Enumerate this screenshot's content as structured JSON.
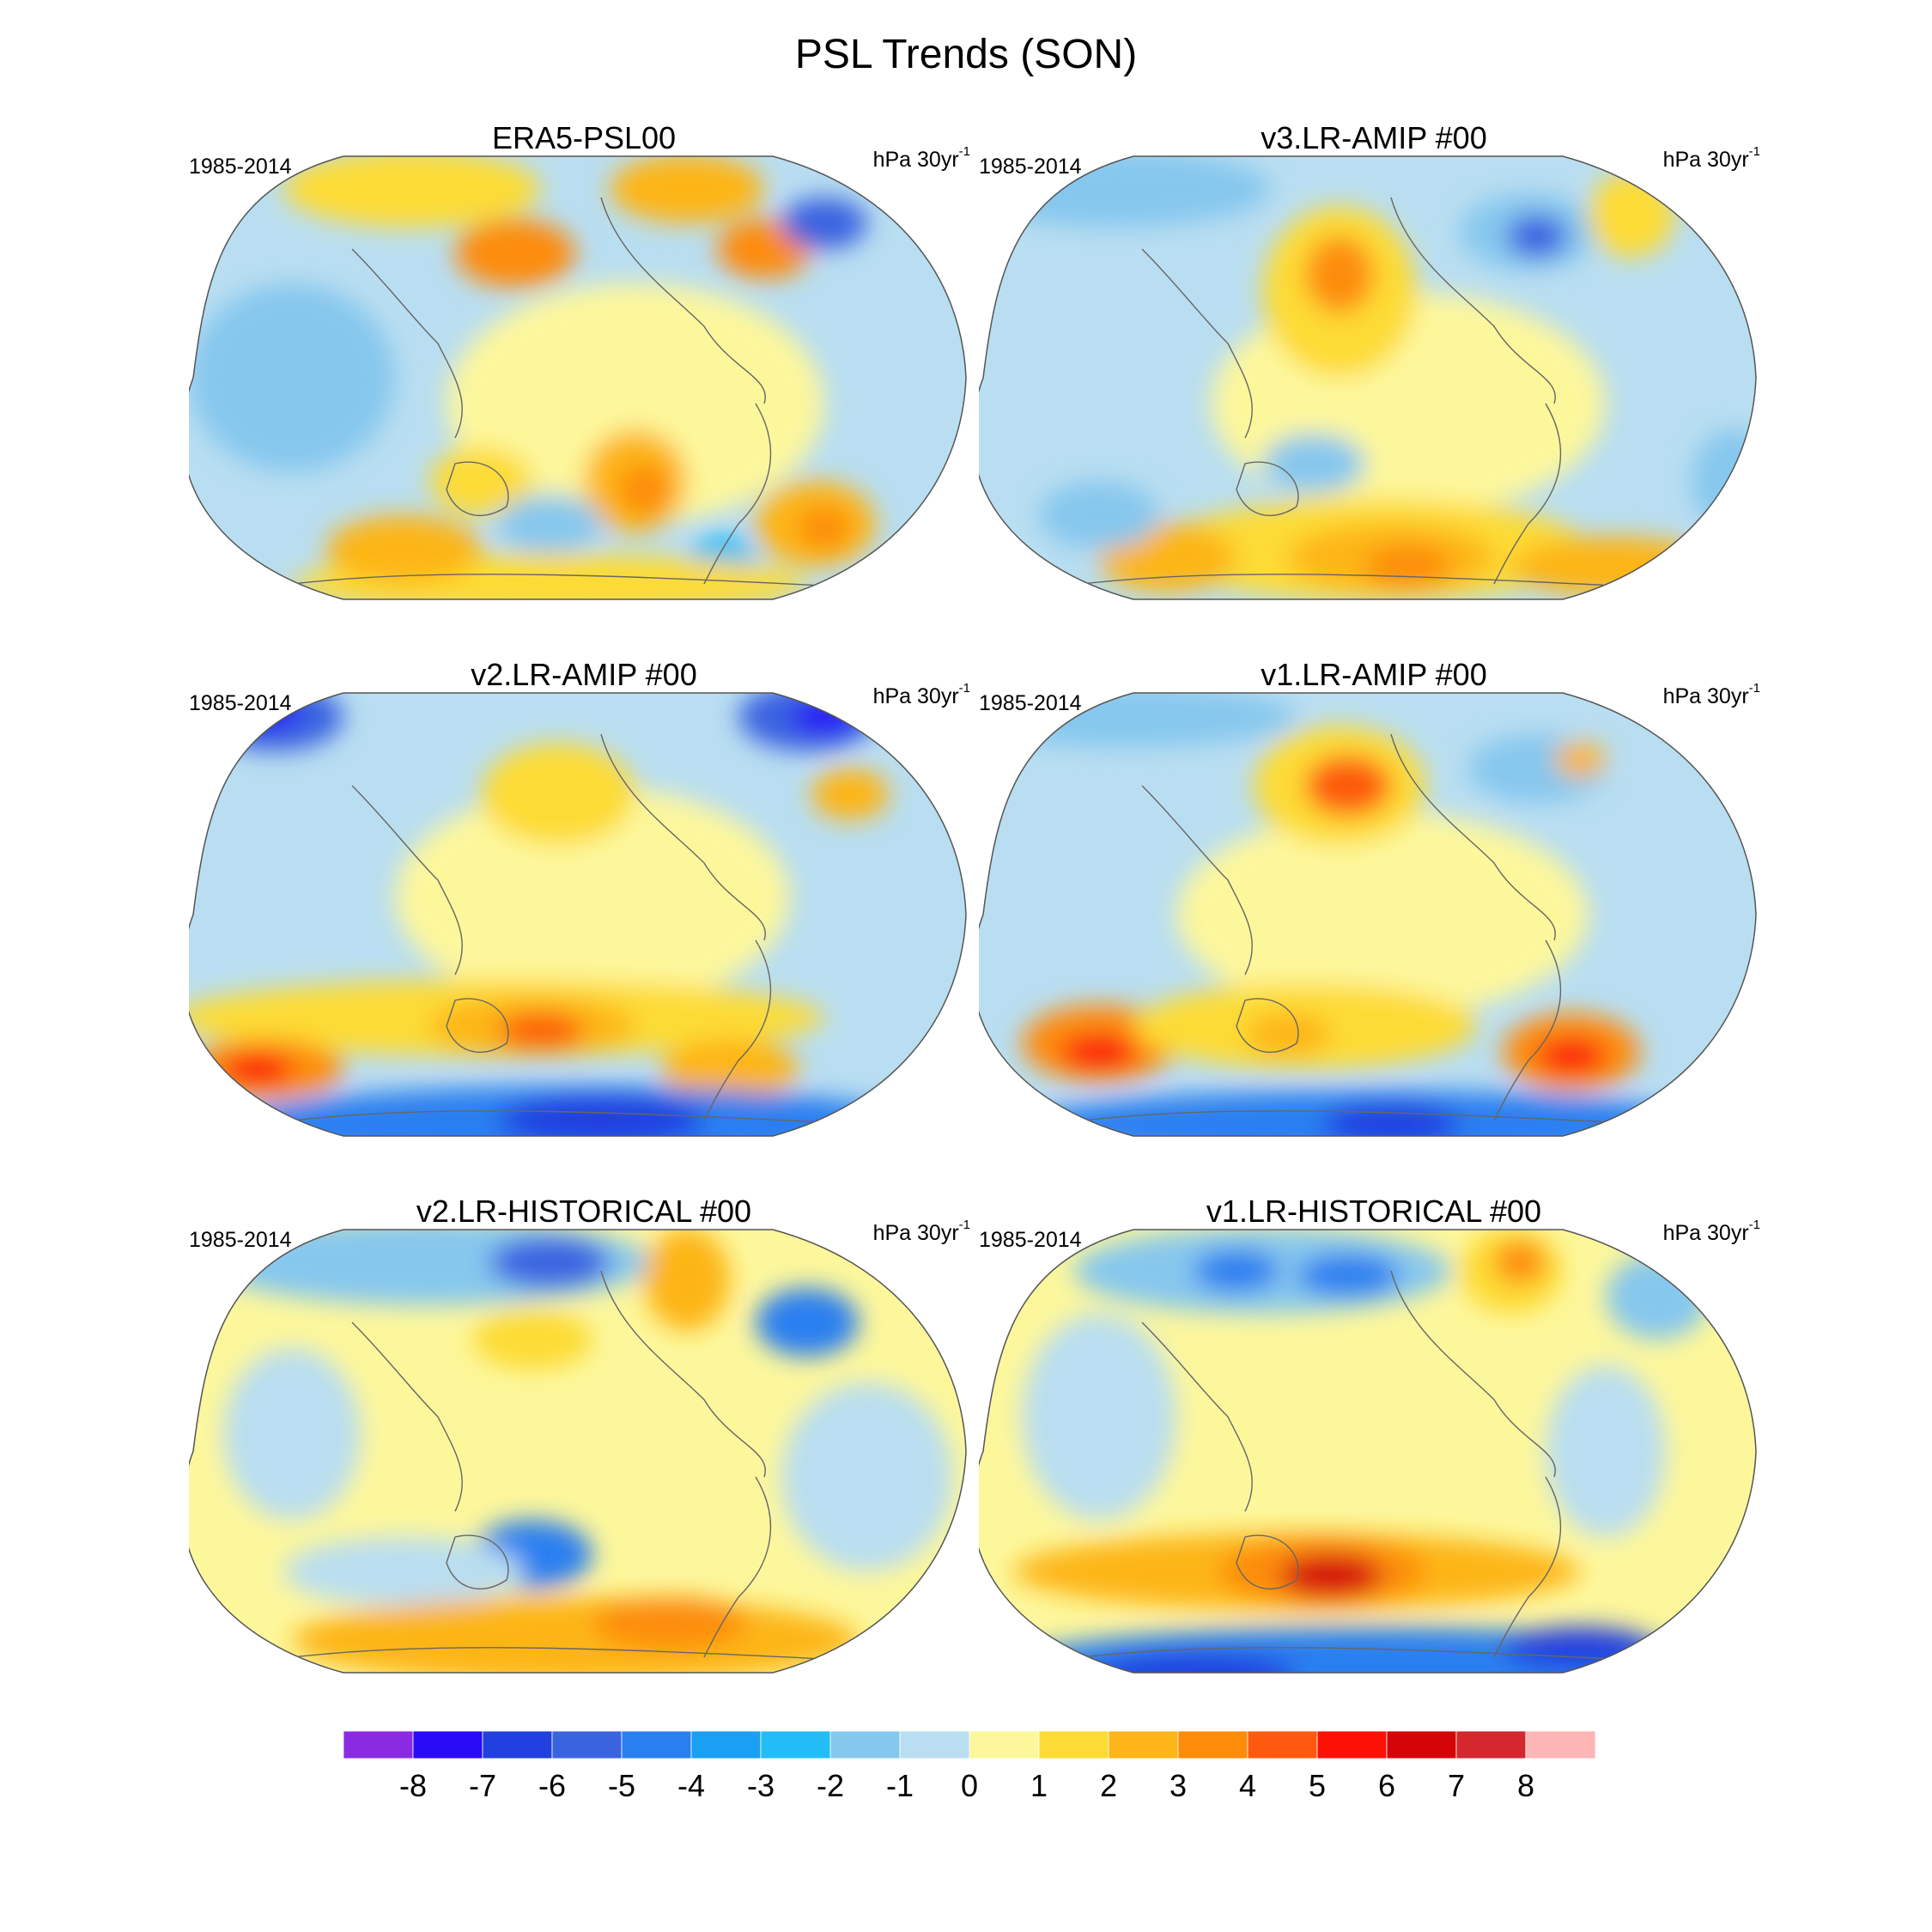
{
  "title": "PSL Trends (SON)",
  "panels": [
    {
      "title": "ERA5-PSL00",
      "period": "1985-2014",
      "units": "hPa 30yr",
      "units_sup": "-1"
    },
    {
      "title": "v3.LR-AMIP  #00",
      "period": "1985-2014",
      "units": "hPa 30yr",
      "units_sup": "-1"
    },
    {
      "title": "v2.LR-AMIP  #00",
      "period": "1985-2014",
      "units": "hPa 30yr",
      "units_sup": "-1"
    },
    {
      "title": "v1.LR-AMIP  #00",
      "period": "1985-2014",
      "units": "hPa 30yr",
      "units_sup": "-1"
    },
    {
      "title": "v2.LR-HISTORICAL  #00",
      "period": "1985-2014",
      "units": "hPa 30yr",
      "units_sup": "-1"
    },
    {
      "title": "v1.LR-HISTORICAL  #00",
      "period": "1985-2014",
      "units": "hPa 30yr",
      "units_sup": "-1"
    }
  ],
  "colorbar": {
    "labels": [
      "-8",
      "-7",
      "-6",
      "-5",
      "-4",
      "-3",
      "-2",
      "-1",
      "0",
      "1",
      "2",
      "3",
      "4",
      "5",
      "6",
      "7",
      "8"
    ],
    "colors": [
      "#8a2be2",
      "#2a0bf5",
      "#2140e0",
      "#3a63e0",
      "#2a7ff0",
      "#1aa0f2",
      "#22bdf6",
      "#86c7ee",
      "#b9def1",
      "#fdf79c",
      "#fddb35",
      "#fdb519",
      "#fd8c0b",
      "#fd5a0f",
      "#fc1107",
      "#d50408",
      "#d4272e",
      "#fdb5b5"
    ]
  }
}
